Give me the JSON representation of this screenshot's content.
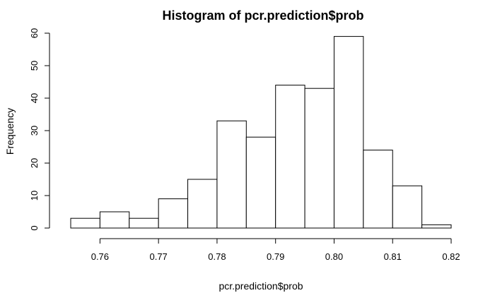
{
  "chart_data": {
    "type": "bar",
    "title": "Histogram of pcr.prediction$prob",
    "xlabel": "pcr.prediction$prob",
    "ylabel": "Frequency",
    "bins": [
      {
        "start": 0.755,
        "end": 0.76,
        "count": 3
      },
      {
        "start": 0.76,
        "end": 0.765,
        "count": 5
      },
      {
        "start": 0.765,
        "end": 0.77,
        "count": 3
      },
      {
        "start": 0.77,
        "end": 0.775,
        "count": 9
      },
      {
        "start": 0.775,
        "end": 0.78,
        "count": 15
      },
      {
        "start": 0.78,
        "end": 0.785,
        "count": 33
      },
      {
        "start": 0.785,
        "end": 0.79,
        "count": 28
      },
      {
        "start": 0.79,
        "end": 0.795,
        "count": 44
      },
      {
        "start": 0.795,
        "end": 0.8,
        "count": 43
      },
      {
        "start": 0.8,
        "end": 0.805,
        "count": 59
      },
      {
        "start": 0.805,
        "end": 0.81,
        "count": 24
      },
      {
        "start": 0.81,
        "end": 0.815,
        "count": 13
      },
      {
        "start": 0.815,
        "end": 0.82,
        "count": 1
      }
    ],
    "xlim": [
      0.755,
      0.82
    ],
    "ylim": [
      0,
      60
    ],
    "x_ticks": [
      "0.76",
      "0.77",
      "0.78",
      "0.79",
      "0.80",
      "0.81",
      "0.82"
    ],
    "y_ticks": [
      "0",
      "10",
      "20",
      "30",
      "40",
      "50",
      "60"
    ],
    "grid": false,
    "colors": {
      "bar_fill": "#ffffff",
      "bar_stroke": "#000000",
      "axis": "#000000"
    }
  }
}
